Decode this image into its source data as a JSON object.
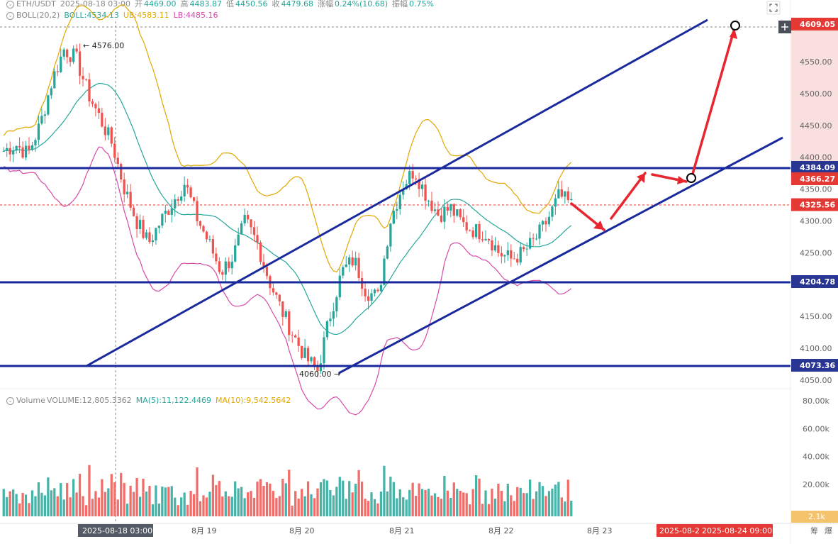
{
  "header": {
    "symbol": "ETH/USDT",
    "time": "2025-08-18 03:00",
    "open_label": "开",
    "open": "4469.00",
    "high_label": "高",
    "high": "4483.87",
    "low_label": "低",
    "low": "4450.56",
    "close_label": "收",
    "close": "4479.68",
    "change_label": "涨幅",
    "change": "0.24%(10.68)",
    "amp_label": "振幅",
    "amp": "0.75%"
  },
  "boll": {
    "label": "BOLL(20,2)",
    "mid_label": "BOLL:",
    "mid": "4534.13",
    "ub_label": "UB:",
    "ub": "4583.11",
    "lb_label": "LB:",
    "lb": "4485.16"
  },
  "volume_header": {
    "label": "Volume",
    "vol_label": "VOLUME:",
    "vol": "12,805.3362",
    "ma5_label": "MA(5):",
    "ma5": "11,122.4469",
    "ma10_label": "MA(10):",
    "ma10": "9,542.5642"
  },
  "price_axis": [
    "4550.00",
    "4500.00",
    "4450.00",
    "4400.00",
    "4350.00",
    "4300.00",
    "4250.00",
    "4150.00",
    "4100.00",
    "4050.00"
  ],
  "price_tags": [
    {
      "value": "4609.05",
      "color": "#e53935"
    },
    {
      "value": "4384.09",
      "color": "#283593"
    },
    {
      "value": "4366.27",
      "color": "#e53935"
    },
    {
      "value": "4325.56",
      "color": "#e53935"
    },
    {
      "value": "4204.78",
      "color": "#283593"
    },
    {
      "value": "4073.36",
      "color": "#283593"
    }
  ],
  "volume_axis": [
    "80.00k",
    "60.00k",
    "40.00k",
    "20.00k"
  ],
  "volume_tag": "2.1k",
  "annotations": {
    "high_mark": "← 4576.00",
    "low_mark": "4060.00 →"
  },
  "x_axis": {
    "labels": [
      "8月 19",
      "8月 20",
      "8月 21",
      "8月 22",
      "8月 23"
    ],
    "crosshair_label": "2025-08-18 03:00",
    "range_start": "2025-08-2",
    "range_end": "2025-08-24 09:00"
  },
  "corner": {
    "a": "筹",
    "b": "爆"
  },
  "chart_data": {
    "type": "candlestick",
    "title": "ETH/USDT",
    "y_range": [
      4040,
      4640
    ],
    "horizontal_levels": [
      4384.09,
      4204.78,
      4073.36
    ],
    "marked_high": 4576.0,
    "marked_low": 4060.0,
    "current_price": 4325.56,
    "projected_target": 4609.05,
    "x_categories": [
      "8月 19",
      "8月 20",
      "8月 21",
      "8月 22",
      "8月 23"
    ],
    "price_path": [
      4410,
      4420,
      4405,
      4450,
      4520,
      4570,
      4555,
      4500,
      4460,
      4420,
      4350,
      4300,
      4265,
      4300,
      4330,
      4360,
      4305,
      4265,
      4220,
      4245,
      4300,
      4265,
      4205,
      4160,
      4120,
      4085,
      4065,
      4150,
      4220,
      4240,
      4190,
      4180,
      4300,
      4355,
      4380,
      4340,
      4310,
      4320,
      4295,
      4285,
      4280,
      4250,
      4240,
      4250,
      4270,
      4300,
      4340,
      4325
    ],
    "volume_series": [
      {
        "name": "VOLUME",
        "last": 12805.3362
      },
      {
        "name": "MA(5)",
        "last": 11122.4469
      },
      {
        "name": "MA(10)",
        "last": 9542.5642
      }
    ],
    "volume_range": [
      0,
      80000
    ]
  },
  "colors": {
    "up": "#26a69a",
    "down": "#ef5350",
    "trend": "#1a2a9c",
    "arrow": "#e8262f",
    "boll_mid": "#26a69a",
    "boll_ub": "#e3a700",
    "boll_lb": "#d64aa8"
  }
}
